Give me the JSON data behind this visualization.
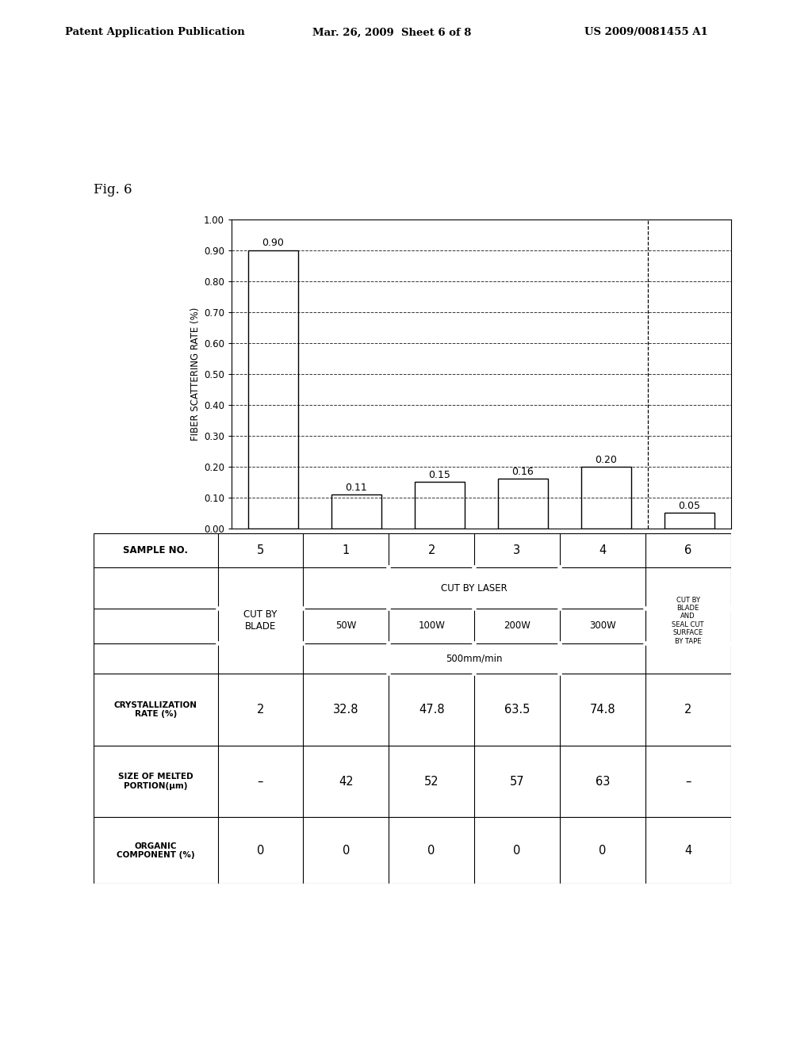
{
  "title_left": "Patent Application Publication",
  "title_mid": "Mar. 26, 2009  Sheet 6 of 8",
  "title_right": "US 2009/0081455 A1",
  "fig_label": "Fig. 6",
  "bar_values": [
    0.9,
    0.11,
    0.15,
    0.16,
    0.2,
    0.05
  ],
  "bar_labels": [
    "0.90",
    "0.11",
    "0.15",
    "0.16",
    "0.20",
    "0.05"
  ],
  "ylabel": "FIBER SCATTERING RATE (%)",
  "ylim": [
    0.0,
    1.0
  ],
  "yticks": [
    0.0,
    0.1,
    0.2,
    0.3,
    0.4,
    0.5,
    0.6,
    0.7,
    0.8,
    0.9,
    1.0
  ],
  "dashed_vline_x": 4.5,
  "sample_header": [
    "5",
    "1",
    "2",
    "3",
    "4",
    "6"
  ],
  "crystallization_values": [
    "2",
    "32.8",
    "47.8",
    "63.5",
    "74.8",
    "2"
  ],
  "melted_values": [
    "–",
    "42",
    "52",
    "57",
    "63",
    "–"
  ],
  "organic_values": [
    "0",
    "0",
    "0",
    "0",
    "0",
    "4"
  ],
  "bg_color": "#ffffff",
  "bar_color": "#ffffff",
  "bar_edge_color": "#000000",
  "grid_color": "#000000",
  "text_color": "#000000"
}
